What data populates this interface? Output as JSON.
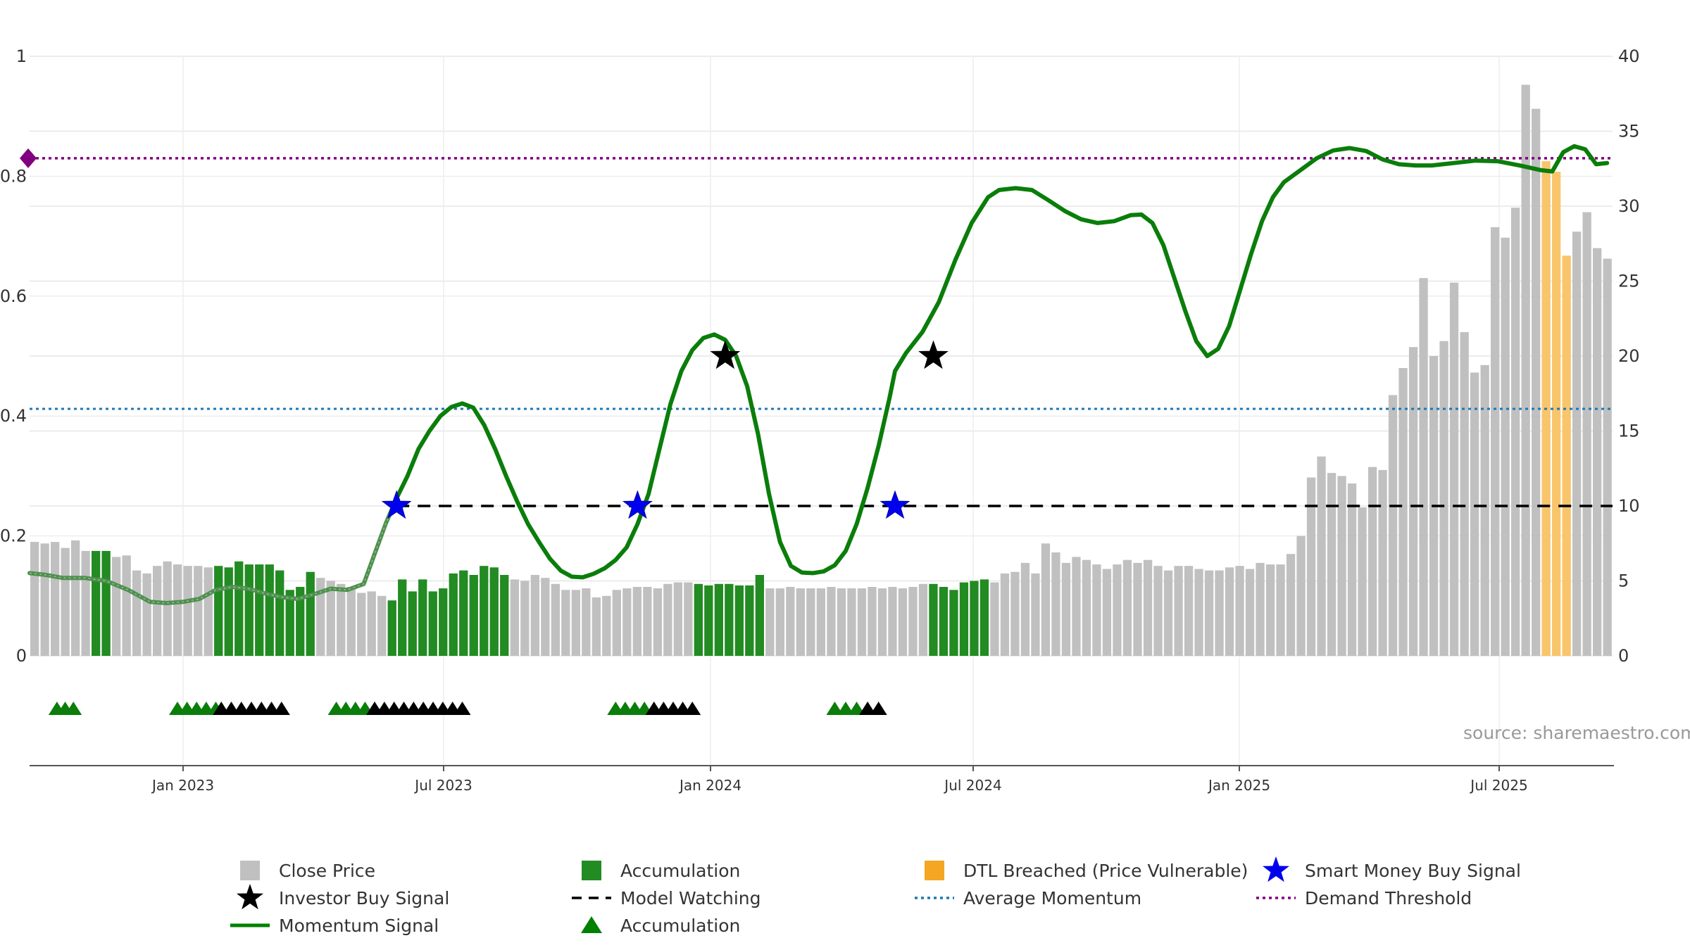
{
  "chart_data": {
    "type": "bar",
    "source": "source: sharemaestro.com",
    "left_axis": {
      "range": [
        0,
        1
      ],
      "ticks": [
        "0",
        "0.2",
        "0.4",
        "0.6",
        "0.8",
        "1"
      ]
    },
    "right_axis": {
      "range": [
        0,
        40
      ],
      "ticks": [
        "0",
        "5",
        "10",
        "15",
        "20",
        "25",
        "30",
        "35",
        "40"
      ]
    },
    "x_ticks": [
      "Jan 2023",
      "Jul 2023",
      "Jan 2024",
      "Jul 2024",
      "Jan 2025",
      "Jul 2025"
    ],
    "close_price": [
      7.6,
      7.5,
      7.6,
      7.2,
      7.7,
      7.0,
      7.0,
      7.0,
      6.6,
      6.7,
      5.7,
      5.5,
      6.0,
      6.3,
      6.1,
      6.0,
      6.0,
      5.9,
      6.0,
      5.9,
      6.3,
      6.1,
      6.1,
      6.1,
      5.7,
      4.4,
      4.6,
      5.6,
      5.2,
      5.0,
      4.8,
      4.6,
      4.2,
      4.3,
      4.0,
      3.7,
      5.1,
      4.3,
      5.1,
      4.3,
      4.5,
      5.5,
      5.7,
      5.4,
      6.0,
      5.9,
      5.4,
      5.1,
      5.0,
      5.4,
      5.2,
      4.8,
      4.4,
      4.4,
      4.5,
      3.9,
      4.0,
      4.4,
      4.5,
      4.6,
      4.6,
      4.5,
      4.8,
      4.9,
      4.9,
      4.8,
      4.7,
      4.8,
      4.8,
      4.7,
      4.7,
      5.4,
      4.5,
      4.5,
      4.6,
      4.5,
      4.5,
      4.5,
      4.6,
      4.5,
      4.5,
      4.5,
      4.6,
      4.5,
      4.6,
      4.5,
      4.6,
      4.8,
      4.8,
      4.6,
      4.4,
      4.9,
      5.0,
      5.1,
      4.9,
      5.5,
      5.6,
      6.2,
      5.5,
      7.5,
      6.9,
      6.2,
      6.6,
      6.4,
      6.1,
      5.8,
      6.1,
      6.4,
      6.2,
      6.4,
      6.0,
      5.7,
      6.0,
      6.0,
      5.8,
      5.7,
      5.7,
      5.9,
      6.0,
      5.8,
      6.2,
      6.1,
      6.1,
      6.8,
      8.0,
      11.9,
      13.3,
      12.2,
      12.0,
      11.5,
      9.9,
      12.6,
      12.4,
      17.4,
      19.2,
      20.6,
      25.2,
      20.0,
      21.0,
      24.9,
      21.6,
      18.9,
      19.4,
      28.6,
      27.9,
      29.9,
      38.1,
      36.5,
      33.0,
      32.3,
      26.7,
      28.3,
      29.6,
      27.2,
      26.5
    ],
    "accumulation_bar_ranges": [
      [
        6,
        7
      ],
      [
        18,
        27
      ],
      [
        35,
        46
      ],
      [
        65,
        71
      ],
      [
        88,
        93
      ]
    ],
    "dtl_breached_bar_range": [
      148,
      150
    ],
    "momentum_signal": [
      [
        0,
        0.138
      ],
      [
        3,
        0.135
      ],
      [
        6,
        0.13
      ],
      [
        10,
        0.13
      ],
      [
        14,
        0.125
      ],
      [
        18,
        0.11
      ],
      [
        22,
        0.09
      ],
      [
        25,
        0.088
      ],
      [
        28,
        0.09
      ],
      [
        31,
        0.095
      ],
      [
        34,
        0.11
      ],
      [
        37,
        0.115
      ],
      [
        40,
        0.112
      ],
      [
        43,
        0.104
      ],
      [
        46,
        0.098
      ],
      [
        49,
        0.095
      ],
      [
        52,
        0.103
      ],
      [
        55,
        0.112
      ],
      [
        58,
        0.11
      ],
      [
        61,
        0.12
      ],
      [
        63,
        0.17
      ],
      [
        65,
        0.22
      ],
      [
        67,
        0.263
      ],
      [
        69,
        0.3
      ],
      [
        71,
        0.345
      ],
      [
        73,
        0.375
      ],
      [
        75,
        0.4
      ],
      [
        77,
        0.415
      ],
      [
        79,
        0.421
      ],
      [
        81,
        0.414
      ],
      [
        83,
        0.385
      ],
      [
        85,
        0.345
      ],
      [
        87,
        0.3
      ],
      [
        89,
        0.258
      ],
      [
        91,
        0.22
      ],
      [
        93,
        0.19
      ],
      [
        95,
        0.162
      ],
      [
        97,
        0.142
      ],
      [
        99,
        0.132
      ],
      [
        101,
        0.131
      ],
      [
        103,
        0.137
      ],
      [
        105,
        0.146
      ],
      [
        107,
        0.16
      ],
      [
        109,
        0.181
      ],
      [
        111,
        0.22
      ],
      [
        113,
        0.27
      ],
      [
        115,
        0.345
      ],
      [
        117,
        0.42
      ],
      [
        119,
        0.475
      ],
      [
        121,
        0.51
      ],
      [
        123,
        0.53
      ],
      [
        125,
        0.536
      ],
      [
        127,
        0.527
      ],
      [
        129,
        0.5
      ],
      [
        131,
        0.45
      ],
      [
        133,
        0.37
      ],
      [
        135,
        0.27
      ],
      [
        137,
        0.19
      ],
      [
        139,
        0.15
      ],
      [
        141,
        0.139
      ],
      [
        143,
        0.138
      ],
      [
        145,
        0.141
      ],
      [
        147,
        0.151
      ],
      [
        149,
        0.175
      ],
      [
        151,
        0.22
      ],
      [
        153,
        0.28
      ],
      [
        155,
        0.35
      ],
      [
        157,
        0.43
      ],
      [
        158,
        0.475
      ],
      [
        160,
        0.505
      ],
      [
        163,
        0.54
      ],
      [
        166,
        0.59
      ],
      [
        169,
        0.66
      ],
      [
        172,
        0.722
      ],
      [
        175,
        0.765
      ],
      [
        177,
        0.777
      ],
      [
        180,
        0.78
      ],
      [
        183,
        0.777
      ],
      [
        186,
        0.76
      ],
      [
        189,
        0.742
      ],
      [
        192,
        0.728
      ],
      [
        195,
        0.722
      ],
      [
        198,
        0.725
      ],
      [
        201,
        0.735
      ],
      [
        203,
        0.736
      ],
      [
        205,
        0.722
      ],
      [
        207,
        0.685
      ],
      [
        209,
        0.63
      ],
      [
        211,
        0.575
      ],
      [
        213,
        0.525
      ],
      [
        215,
        0.5
      ],
      [
        217,
        0.512
      ],
      [
        219,
        0.55
      ],
      [
        221,
        0.61
      ],
      [
        223,
        0.67
      ],
      [
        225,
        0.725
      ],
      [
        227,
        0.765
      ],
      [
        229,
        0.79
      ],
      [
        232,
        0.81
      ],
      [
        235,
        0.83
      ],
      [
        238,
        0.843
      ],
      [
        241,
        0.847
      ],
      [
        244,
        0.842
      ],
      [
        247,
        0.828
      ],
      [
        250,
        0.82
      ],
      [
        253,
        0.818
      ],
      [
        256,
        0.818
      ],
      [
        260,
        0.822
      ],
      [
        264,
        0.826
      ],
      [
        268,
        0.825
      ],
      [
        272,
        0.818
      ],
      [
        276,
        0.81
      ],
      [
        278,
        0.808
      ],
      [
        280,
        0.84
      ],
      [
        282,
        0.85
      ],
      [
        284,
        0.845
      ],
      [
        286,
        0.82
      ],
      [
        288,
        0.822
      ]
    ],
    "momentum_faded_until_x": 67,
    "investor_buy_signal": [
      [
        127,
        0.5
      ],
      [
        165,
        0.5
      ]
    ],
    "smart_money_buy_signal": [
      [
        67,
        0.25
      ],
      [
        111,
        0.25
      ],
      [
        158,
        0.25
      ]
    ],
    "model_watching_y": 0.25,
    "average_momentum_y": 0.412,
    "demand_threshold_y": 0.83,
    "accumulation_triangle_groups": [
      [
        5,
        8,
        "green"
      ],
      [
        27,
        34,
        "green"
      ],
      [
        35,
        46,
        "black"
      ],
      [
        56,
        63,
        "green"
      ],
      [
        63,
        79,
        "black"
      ],
      [
        107,
        114,
        "green"
      ],
      [
        114,
        121,
        "black"
      ],
      [
        147,
        153,
        "green"
      ],
      [
        153,
        155,
        "black"
      ]
    ],
    "legend": [
      {
        "label": "Close Price",
        "symbol": "square",
        "color": "#c0c0c0"
      },
      {
        "label": "Accumulation",
        "symbol": "square",
        "color": "#228b22"
      },
      {
        "label": "DTL Breached (Price Vulnerable)",
        "symbol": "square",
        "color": "#f5a623"
      },
      {
        "label": "Smart Money Buy Signal",
        "symbol": "star",
        "color": "#0000ee"
      },
      {
        "label": "Investor Buy Signal",
        "symbol": "star",
        "color": "#000000"
      },
      {
        "label": "Model Watching",
        "symbol": "dash",
        "color": "#000000"
      },
      {
        "label": "Average Momentum",
        "symbol": "dot",
        "color": "#1f77b4"
      },
      {
        "label": "Demand Threshold",
        "symbol": "dot",
        "color": "#800080"
      },
      {
        "label": "Momentum Signal",
        "symbol": "line",
        "color": "#008000"
      },
      {
        "label": "Accumulation",
        "symbol": "triangle",
        "color": "#008000"
      }
    ],
    "colors": {
      "close": "#c0c0c0",
      "accumulation": "#228b22",
      "dtl": "#f9c56b",
      "momentum": "#0a7d0a",
      "momentum_faded": "#4f8f4f",
      "average_momentum": "#1f77b4",
      "demand_threshold": "#800080",
      "grid": "#e6e6e6",
      "axis": "#555555"
    }
  }
}
